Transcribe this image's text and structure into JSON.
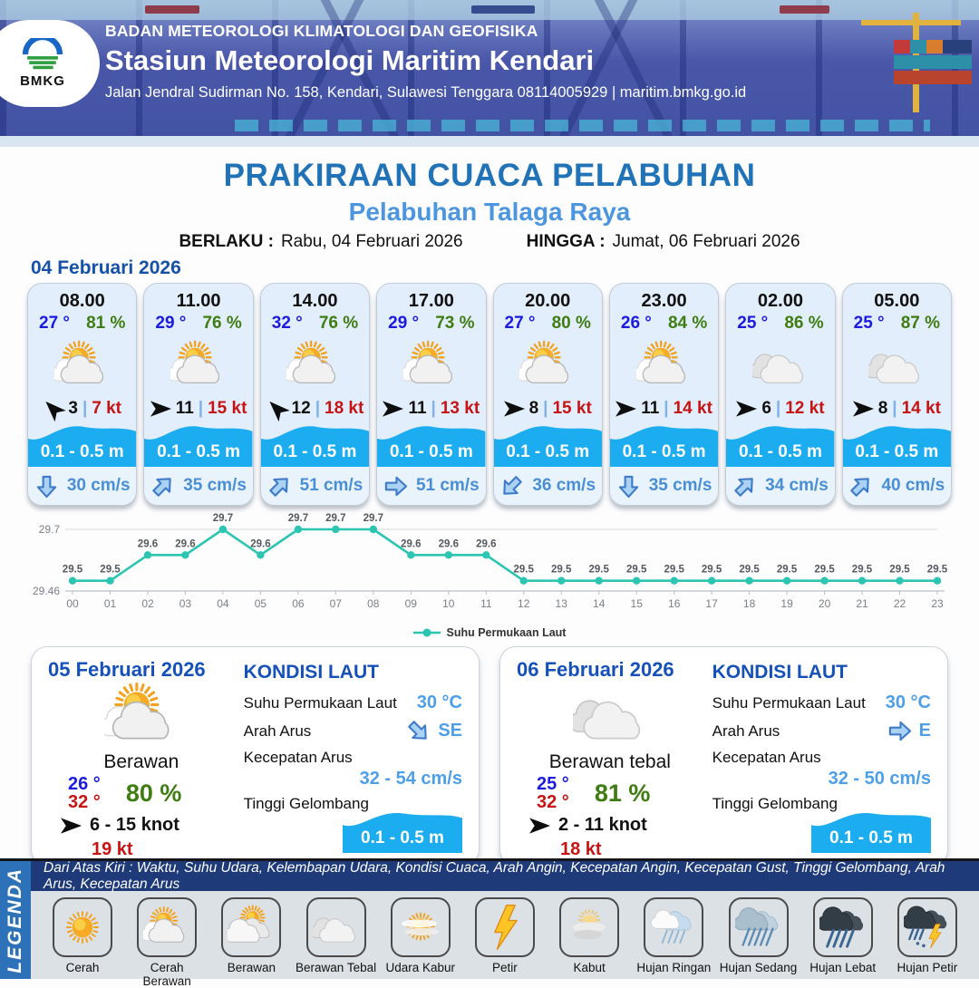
{
  "header": {
    "logo_text": "BMKG",
    "org": "BADAN METEOROLOGI KLIMATOLOGI DAN GEOFISIKA",
    "station": "Stasiun Meteorologi Maritim Kendari",
    "address": "Jalan Jendral Sudirman No. 158, Kendari, Sulawesi Tenggara  08114005929 | maritim.bmkg.go.id"
  },
  "title": {
    "main": "PRAKIRAAN CUACA PELABUHAN",
    "sub": "Pelabuhan Talaga Raya",
    "berlaku_label": "BERLAKU :",
    "berlaku_value": "Rabu, 04 Februari 2026",
    "hingga_label": "HINGGA :",
    "hingga_value": "Jumat, 06 Februari 2026"
  },
  "hourly": {
    "date": "04 Februari 2026",
    "cards": [
      {
        "time": "08.00",
        "temp": "27 °",
        "humidity": "81 %",
        "icon": "cerah-berawan",
        "wind_dir": "nw",
        "wind": "3",
        "sep": "|",
        "gust": "7 kt",
        "wave": "0.1 - 0.5 m",
        "current_dir": "s",
        "current": "30 cm/s"
      },
      {
        "time": "11.00",
        "temp": "29 °",
        "humidity": "76 %",
        "icon": "cerah-berawan",
        "wind_dir": "e",
        "wind": "11",
        "sep": "|",
        "gust": "15 kt",
        "wave": "0.1 - 0.5 m",
        "current_dir": "ne",
        "current": "35 cm/s"
      },
      {
        "time": "14.00",
        "temp": "32 °",
        "humidity": "76 %",
        "icon": "cerah-berawan",
        "wind_dir": "nw",
        "wind": "12",
        "sep": "|",
        "gust": "18 kt",
        "wave": "0.1 - 0.5 m",
        "current_dir": "ne",
        "current": "51 cm/s"
      },
      {
        "time": "17.00",
        "temp": "29 °",
        "humidity": "73 %",
        "icon": "cerah-berawan",
        "wind_dir": "e",
        "wind": "11",
        "sep": "|",
        "gust": "13 kt",
        "wave": "0.1 - 0.5 m",
        "current_dir": "e",
        "current": "51 cm/s"
      },
      {
        "time": "20.00",
        "temp": "27 °",
        "humidity": "80 %",
        "icon": "cerah-berawan",
        "wind_dir": "e",
        "wind": "8",
        "sep": "|",
        "gust": "15 kt",
        "wave": "0.1 - 0.5 m",
        "current_dir": "sw",
        "current": "36 cm/s"
      },
      {
        "time": "23.00",
        "temp": "26 °",
        "humidity": "84 %",
        "icon": "cerah-berawan",
        "wind_dir": "e",
        "wind": "11",
        "sep": "|",
        "gust": "14 kt",
        "wave": "0.1 - 0.5 m",
        "current_dir": "s",
        "current": "35 cm/s"
      },
      {
        "time": "02.00",
        "temp": "25 °",
        "humidity": "86 %",
        "icon": "berawan-tebal",
        "wind_dir": "e",
        "wind": "6",
        "sep": "|",
        "gust": "12 kt",
        "wave": "0.1 - 0.5 m",
        "current_dir": "ne",
        "current": "34 cm/s"
      },
      {
        "time": "05.00",
        "temp": "25 °",
        "humidity": "87 %",
        "icon": "berawan-tebal",
        "wind_dir": "e",
        "wind": "8",
        "sep": "|",
        "gust": "14 kt",
        "wave": "0.1 - 0.5 m",
        "current_dir": "ne",
        "current": "40 cm/s"
      }
    ]
  },
  "chart_data": {
    "type": "line",
    "series_name": "Suhu Permukaan Laut",
    "x": [
      "00",
      "01",
      "02",
      "03",
      "04",
      "05",
      "06",
      "07",
      "08",
      "09",
      "10",
      "11",
      "12",
      "13",
      "14",
      "15",
      "16",
      "17",
      "18",
      "19",
      "20",
      "21",
      "22",
      "23"
    ],
    "values": [
      29.5,
      29.5,
      29.6,
      29.6,
      29.7,
      29.6,
      29.7,
      29.7,
      29.7,
      29.6,
      29.6,
      29.6,
      29.5,
      29.5,
      29.5,
      29.5,
      29.5,
      29.5,
      29.5,
      29.5,
      29.5,
      29.5,
      29.5,
      29.5
    ],
    "ylabel": "",
    "xlabel": "",
    "ylim": [
      29.46,
      29.7
    ],
    "yticks": [
      29.46,
      29.7
    ],
    "line_color": "#2cc5b2",
    "legend_position": "bottom",
    "grid": true
  },
  "daily": [
    {
      "date": "05 Februari 2026",
      "icon": "cerah-berawan",
      "condition": "Berawan",
      "temp_min": "26 °",
      "temp_max": "32 °",
      "humidity": "80 %",
      "wind_range": "6  - 15 knot",
      "gust": "19 kt",
      "sea": {
        "title": "KONDISI LAUT",
        "sst_label": "Suhu Permukaan Laut",
        "sst": "30 °C",
        "arah_label": "Arah Arus",
        "arah": "SE",
        "arah_dir": "se",
        "kec_label": "Kecepatan Arus",
        "kec": "32 - 54 cm/s",
        "gel_label": "Tinggi Gelombang",
        "gel": "0.1 - 0.5 m"
      }
    },
    {
      "date": "06 Februari 2026",
      "icon": "berawan-tebal",
      "condition": "Berawan tebal",
      "temp_min": "25 °",
      "temp_max": "32 °",
      "humidity": "81 %",
      "wind_range": "2  - 11 knot",
      "gust": "18 kt",
      "sea": {
        "title": "KONDISI LAUT",
        "sst_label": "Suhu Permukaan Laut",
        "sst": "30 °C",
        "arah_label": "Arah Arus",
        "arah": "E",
        "arah_dir": "e",
        "kec_label": "Kecepatan Arus",
        "kec": "32 - 50 cm/s",
        "gel_label": "Tinggi Gelombang",
        "gel": "0.1 - 0.5 m"
      }
    }
  ],
  "legend": {
    "side": "LEGENDA",
    "caption": "Dari Atas Kiri : Waktu, Suhu Udara, Kelembapan Udara, Kondisi Cuaca, Arah Angin, Kecepatan Angin, Kecepatan Gust, Tinggi Gelombang, Arah Arus, Kecepatan Arus",
    "items": [
      {
        "label": "Cerah",
        "icon": "cerah"
      },
      {
        "label": "Cerah Berawan",
        "icon": "cerah-berawan"
      },
      {
        "label": "Berawan",
        "icon": "berawan"
      },
      {
        "label": "Berawan Tebal",
        "icon": "berawan-tebal"
      },
      {
        "label": "Udara Kabur",
        "icon": "udara-kabur"
      },
      {
        "label": "Petir",
        "icon": "petir"
      },
      {
        "label": "Kabut",
        "icon": "kabut"
      },
      {
        "label": "Hujan Ringan",
        "icon": "hujan-ringan"
      },
      {
        "label": "Hujan Sedang",
        "icon": "hujan-sedang"
      },
      {
        "label": "Hujan Lebat",
        "icon": "hujan-lebat"
      },
      {
        "label": "Hujan Petir",
        "icon": "hujan-petir"
      }
    ]
  },
  "colors": {
    "accent_blue": "#2173b8",
    "light_blue": "#4c96e0",
    "temp_blue": "#1b1be0",
    "humidity_green": "#3f7d12",
    "gust_red": "#c61414",
    "wave_band": "#1badf0",
    "chart_line": "#2cc5b2",
    "legend_bar": "#1e3a78",
    "legend_side": "#2d72b8"
  }
}
